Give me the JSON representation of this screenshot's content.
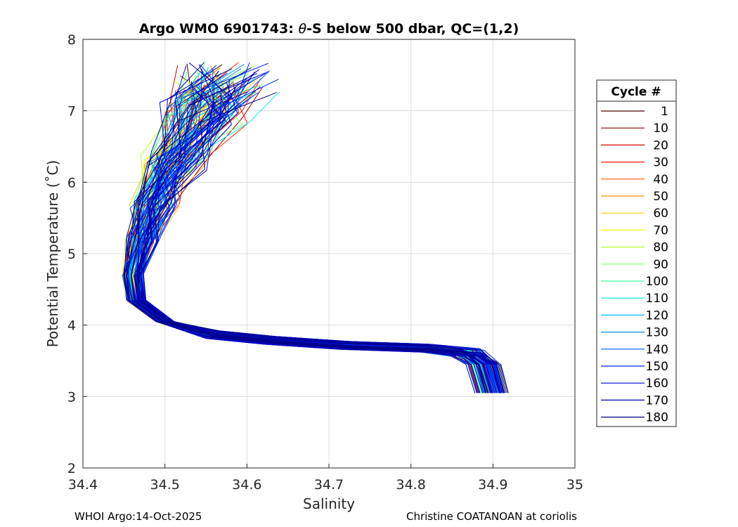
{
  "chart_data": {
    "type": "line",
    "title": "Argo WMO 6901743: θ-S below 500 dbar,  QC=(1,2)",
    "title_prefix": "Argo WMO 6901743: ",
    "title_theta": "θ",
    "title_suffix": "-S below 500 dbar,  QC=(1,2)",
    "xlabel": "Salinity",
    "ylabel": "Potential Temperature (˚C)",
    "xlim": [
      34.4,
      35.0
    ],
    "ylim": [
      2,
      8
    ],
    "xticks": [
      "34.4",
      "34.5",
      "34.6",
      "34.7",
      "34.8",
      "34.9",
      "35"
    ],
    "yticks": [
      "2",
      "3",
      "4",
      "5",
      "6",
      "7",
      "8"
    ],
    "grid": true,
    "legend": {
      "title": "Cycle #",
      "position": "outside-right",
      "entries": [
        {
          "label": "1",
          "color": "#4a0000"
        },
        {
          "label": "10",
          "color": "#900000"
        },
        {
          "label": "20",
          "color": "#d40000"
        },
        {
          "label": "30",
          "color": "#ff1a00"
        },
        {
          "label": "40",
          "color": "#ff5500"
        },
        {
          "label": "50",
          "color": "#ff9000"
        },
        {
          "label": "60",
          "color": "#ffcc00"
        },
        {
          "label": "70",
          "color": "#f6ff00"
        },
        {
          "label": "80",
          "color": "#b8ff30"
        },
        {
          "label": "90",
          "color": "#78ff70"
        },
        {
          "label": "100",
          "color": "#3cffa8"
        },
        {
          "label": "110",
          "color": "#00f0dd"
        },
        {
          "label": "120",
          "color": "#00bfff"
        },
        {
          "label": "130",
          "color": "#0090ff"
        },
        {
          "label": "140",
          "color": "#0058ff"
        },
        {
          "label": "150",
          "color": "#0025ff"
        },
        {
          "label": "160",
          "color": "#0000dc"
        },
        {
          "label": "170",
          "color": "#0000b0"
        },
        {
          "label": "180",
          "color": "#000088"
        }
      ]
    },
    "profile_shape": [
      [
        34.555,
        7.45
      ],
      [
        34.53,
        7.0
      ],
      [
        34.5,
        6.3
      ],
      [
        34.48,
        5.7
      ],
      [
        34.468,
        5.2
      ],
      [
        34.46,
        4.7
      ],
      [
        34.465,
        4.35
      ],
      [
        34.5,
        4.05
      ],
      [
        34.56,
        3.87
      ],
      [
        34.63,
        3.79
      ],
      [
        34.72,
        3.72
      ],
      [
        34.82,
        3.68
      ],
      [
        34.87,
        3.62
      ],
      [
        34.89,
        3.45
      ],
      [
        34.895,
        3.25
      ],
      [
        34.9,
        3.05
      ]
    ]
  },
  "footer": {
    "left": "WHOI Argo:14-Oct-2025",
    "right": "Christine COATANOAN at coriolis"
  }
}
